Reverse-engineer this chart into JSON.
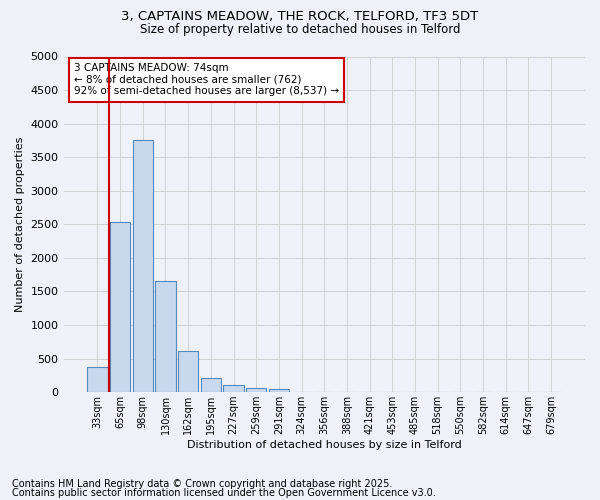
{
  "title_line1": "3, CAPTAINS MEADOW, THE ROCK, TELFORD, TF3 5DT",
  "title_line2": "Size of property relative to detached houses in Telford",
  "xlabel": "Distribution of detached houses by size in Telford",
  "ylabel": "Number of detached properties",
  "categories": [
    "33sqm",
    "65sqm",
    "98sqm",
    "130sqm",
    "162sqm",
    "195sqm",
    "227sqm",
    "259sqm",
    "291sqm",
    "324sqm",
    "356sqm",
    "388sqm",
    "421sqm",
    "453sqm",
    "485sqm",
    "518sqm",
    "550sqm",
    "582sqm",
    "614sqm",
    "647sqm",
    "679sqm"
  ],
  "values": [
    380,
    2540,
    3750,
    1650,
    620,
    210,
    100,
    55,
    45,
    0,
    0,
    0,
    0,
    0,
    0,
    0,
    0,
    0,
    0,
    0,
    0
  ],
  "bar_color": "#c8d9ee",
  "bar_edge_color": "#5588bb",
  "vline_color": "#cc0000",
  "annotation_text": "3 CAPTAINS MEADOW: 74sqm\n← 8% of detached houses are smaller (762)\n92% of semi-detached houses are larger (8,537) →",
  "annotation_box_color": "#ffffff",
  "annotation_box_edge": "#cc0000",
  "ylim": [
    0,
    5000
  ],
  "yticks": [
    0,
    500,
    1000,
    1500,
    2000,
    2500,
    3000,
    3500,
    4000,
    4500,
    5000
  ],
  "grid_color": "#cccccc",
  "bg_color": "#eef2f8",
  "footer_line1": "Contains HM Land Registry data © Crown copyright and database right 2025.",
  "footer_line2": "Contains public sector information licensed under the Open Government Licence v3.0.",
  "footer_fontsize": 7
}
